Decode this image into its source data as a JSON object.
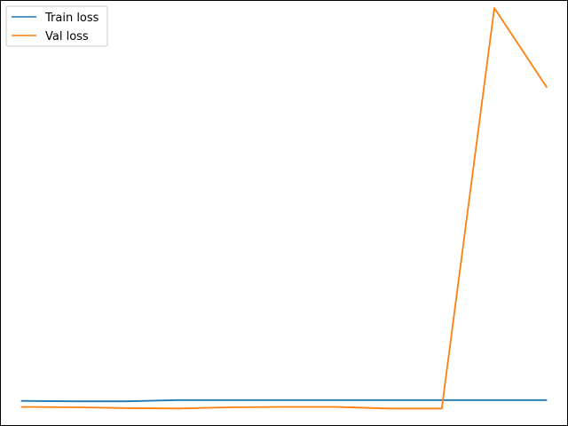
{
  "chart_data": {
    "type": "line",
    "title": "",
    "xlabel": "",
    "ylabel": "",
    "x": [
      0,
      1,
      2,
      3,
      4,
      5,
      6,
      7,
      8,
      9,
      10
    ],
    "xlim": [
      -0.4,
      10.4
    ],
    "ylim": [
      -0.5,
      10.2
    ],
    "grid": false,
    "legend": {
      "position": "top-left"
    },
    "series": [
      {
        "name": "Train loss",
        "color": "#1f77b4",
        "values": [
          0.13,
          0.12,
          0.12,
          0.15,
          0.15,
          0.15,
          0.15,
          0.15,
          0.15,
          0.15,
          0.15
        ]
      },
      {
        "name": "Val loss",
        "color": "#ff7f0e",
        "values": [
          -0.02,
          -0.03,
          -0.05,
          -0.06,
          -0.03,
          -0.02,
          -0.02,
          -0.06,
          -0.06,
          10.0,
          8.0
        ]
      }
    ]
  }
}
